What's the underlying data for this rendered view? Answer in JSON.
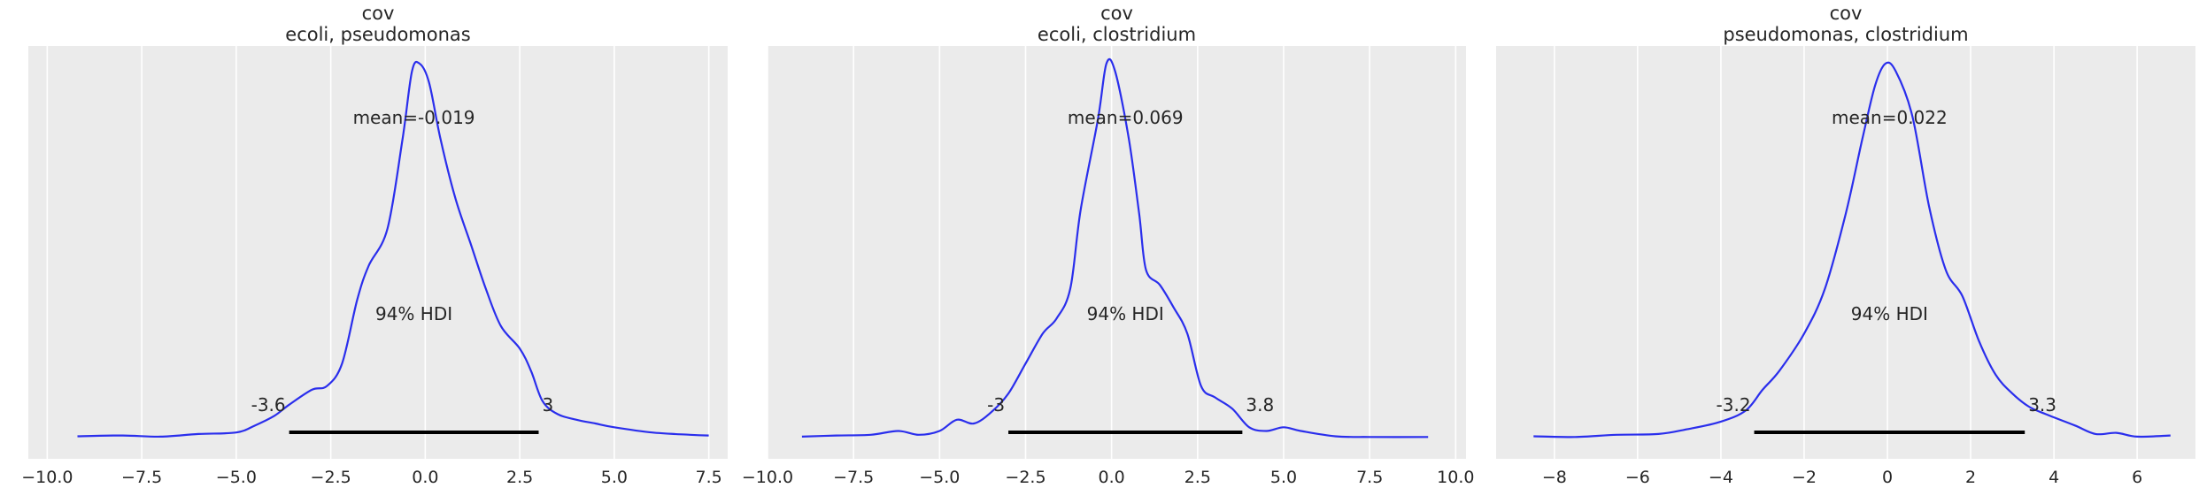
{
  "chart_data": [
    {
      "type": "line",
      "title": "cov",
      "subtitle": "ecoli, pseudomonas",
      "xlim": [
        -10.5,
        8.0
      ],
      "xticks": [
        -10.0,
        -7.5,
        -5.0,
        -2.5,
        0.0,
        2.5,
        5.0,
        7.5
      ],
      "xtick_labels": [
        "−10.0",
        "−7.5",
        "−5.0",
        "−2.5",
        "0.0",
        "2.5",
        "5.0",
        "7.5"
      ],
      "grid": true,
      "mean_label": "mean=-0.019",
      "hdi_label": "94% HDI",
      "hdi": [
        -3.6,
        3.0
      ],
      "hdi_lower_label": "-3.6",
      "hdi_upper_label": "3",
      "density": {
        "x": [
          -9.2,
          -8.0,
          -7.0,
          -6.0,
          -5.0,
          -4.5,
          -4.0,
          -3.6,
          -3.0,
          -2.6,
          -2.2,
          -1.8,
          -1.5,
          -1.0,
          -0.6,
          -0.35,
          -0.15,
          0.1,
          0.4,
          0.8,
          1.2,
          1.6,
          2.0,
          2.5,
          2.8,
          3.1,
          3.5,
          4.0,
          4.5,
          5.0,
          6.0,
          7.0,
          7.5
        ],
        "y": [
          0.006,
          0.008,
          0.005,
          0.012,
          0.016,
          0.035,
          0.06,
          0.09,
          0.13,
          0.14,
          0.2,
          0.37,
          0.46,
          0.56,
          0.8,
          0.98,
          1.0,
          0.95,
          0.8,
          0.64,
          0.52,
          0.4,
          0.3,
          0.24,
          0.18,
          0.1,
          0.065,
          0.05,
          0.04,
          0.03,
          0.016,
          0.01,
          0.008
        ]
      }
    },
    {
      "type": "line",
      "title": "cov",
      "subtitle": "ecoli, clostridium",
      "xlim": [
        -10.0,
        10.3
      ],
      "xticks": [
        -10.0,
        -7.5,
        -5.0,
        -2.5,
        0.0,
        2.5,
        5.0,
        7.5,
        10.0
      ],
      "xtick_labels": [
        "−10.0",
        "−7.5",
        "−5.0",
        "−2.5",
        "0.0",
        "2.5",
        "5.0",
        "7.5",
        "10.0"
      ],
      "grid": true,
      "mean_label": "mean=0.069",
      "hdi_label": "94% HDI",
      "hdi": [
        -3.0,
        3.8
      ],
      "hdi_lower_label": "-3",
      "hdi_upper_label": "3.8",
      "density": {
        "x": [
          -9.0,
          -8.0,
          -7.0,
          -6.2,
          -5.6,
          -5.0,
          -4.5,
          -4.0,
          -3.5,
          -3.0,
          -2.5,
          -2.0,
          -1.6,
          -1.2,
          -0.9,
          -0.4,
          -0.15,
          0.1,
          0.5,
          0.8,
          1.0,
          1.4,
          1.8,
          2.2,
          2.6,
          3.0,
          3.5,
          4.0,
          4.5,
          5.0,
          5.5,
          6.5,
          7.5,
          9.2
        ],
        "y": [
          0.005,
          0.008,
          0.01,
          0.02,
          0.01,
          0.02,
          0.05,
          0.04,
          0.07,
          0.12,
          0.2,
          0.28,
          0.32,
          0.4,
          0.61,
          0.85,
          1.0,
          0.98,
          0.8,
          0.6,
          0.45,
          0.41,
          0.35,
          0.28,
          0.14,
          0.11,
          0.08,
          0.03,
          0.02,
          0.03,
          0.02,
          0.006,
          0.004,
          0.004
        ]
      }
    },
    {
      "type": "line",
      "title": "cov",
      "subtitle": "pseudomonas, clostridium",
      "xlim": [
        -9.4,
        7.4
      ],
      "xticks": [
        -8,
        -6,
        -4,
        -2,
        0,
        2,
        4,
        6
      ],
      "xtick_labels": [
        "−8",
        "−6",
        "−4",
        "−2",
        "0",
        "2",
        "4",
        "6"
      ],
      "grid": true,
      "mean_label": "mean=0.022",
      "hdi_label": "94% HDI",
      "hdi": [
        -3.2,
        3.3
      ],
      "hdi_lower_label": "-3.2",
      "hdi_upper_label": "3.3",
      "density": {
        "x": [
          -8.5,
          -7.5,
          -6.5,
          -5.5,
          -4.8,
          -4.0,
          -3.4,
          -3.0,
          -2.6,
          -2.0,
          -1.5,
          -1.0,
          -0.6,
          -0.3,
          -0.05,
          0.2,
          0.6,
          1.0,
          1.4,
          1.8,
          2.2,
          2.6,
          3.0,
          3.4,
          3.8,
          4.5,
          5.0,
          5.5,
          6.0,
          6.8
        ],
        "y": [
          0.006,
          0.004,
          0.01,
          0.012,
          0.025,
          0.045,
          0.075,
          0.13,
          0.18,
          0.28,
          0.4,
          0.6,
          0.8,
          0.94,
          1.0,
          0.98,
          0.86,
          0.62,
          0.45,
          0.38,
          0.26,
          0.17,
          0.12,
          0.085,
          0.065,
          0.035,
          0.012,
          0.015,
          0.005,
          0.008
        ]
      }
    }
  ]
}
